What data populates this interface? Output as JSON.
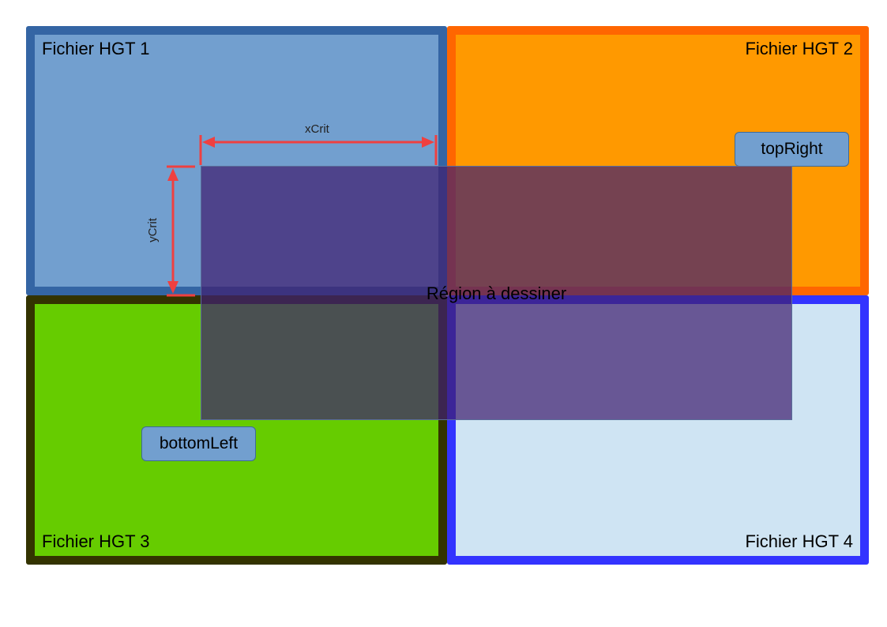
{
  "tiles": [
    {
      "label": "Fichier HGT 1",
      "fill": "#729fcf",
      "border": "#3465a4"
    },
    {
      "label": "Fichier HGT 2",
      "fill": "#ff9900",
      "border": "#ff6600"
    },
    {
      "label": "Fichier HGT 3",
      "fill": "#66cc00",
      "border": "#333300"
    },
    {
      "label": "Fichier HGT 4",
      "fill": "#cfe4f3",
      "border": "#3333ff"
    }
  ],
  "region": {
    "label": "Région à dessiner",
    "fill": "rgba(64,32,112,0.72)"
  },
  "markers": {
    "top_right": "topRight",
    "bottom_left": "bottomLeft",
    "fill": "#729fcf"
  },
  "dimensions": {
    "x_label": "xCrit",
    "y_label": "yCrit",
    "color": "#ef4040"
  }
}
